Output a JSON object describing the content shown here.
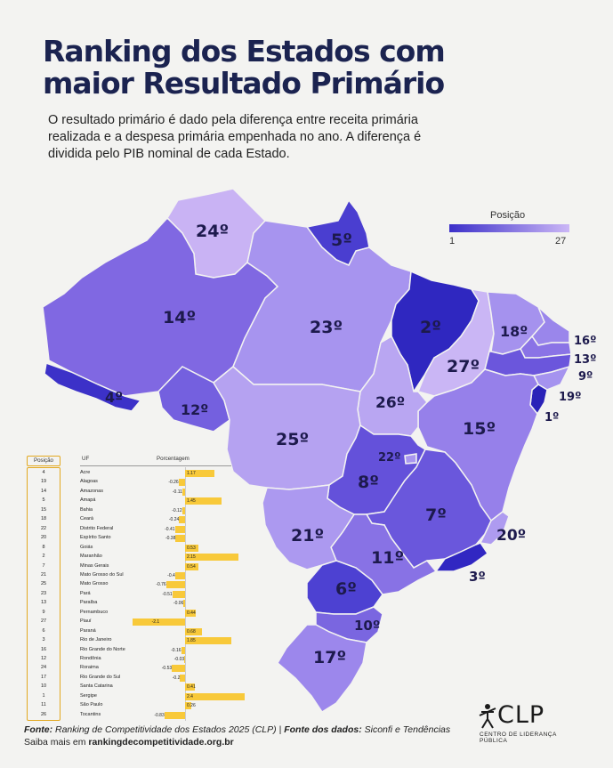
{
  "title": {
    "line1": "Ranking dos Estados com",
    "line2": "maior Resultado Primário"
  },
  "subtitle": "O resultado primário é dado pela diferença entre receita primária realizada e a despesa primária empenhada no ano. A diferença é dividida pelo PIB nominal de cada Estado.",
  "legend": {
    "title": "Posição",
    "min": "1",
    "max": "27",
    "color_min": "#3b2fc9",
    "color_max": "#cbb7f6"
  },
  "map_labels": [
    {
      "uf": "RR",
      "rank": "24º"
    },
    {
      "uf": "AP",
      "rank": "5º"
    },
    {
      "uf": "AM",
      "rank": "14º"
    },
    {
      "uf": "PA",
      "rank": "23º"
    },
    {
      "uf": "MA",
      "rank": "2º"
    },
    {
      "uf": "CE",
      "rank": "18º"
    },
    {
      "uf": "RN",
      "rank": "16º"
    },
    {
      "uf": "PB",
      "rank": "13º"
    },
    {
      "uf": "PE",
      "rank": "9º"
    },
    {
      "uf": "AL",
      "rank": "19º"
    },
    {
      "uf": "SE",
      "rank": "1º"
    },
    {
      "uf": "PI",
      "rank": "27º"
    },
    {
      "uf": "AC",
      "rank": "4º"
    },
    {
      "uf": "RO",
      "rank": "12º"
    },
    {
      "uf": "TO",
      "rank": "26º"
    },
    {
      "uf": "BA",
      "rank": "15º"
    },
    {
      "uf": "MT",
      "rank": "25º"
    },
    {
      "uf": "DF",
      "rank": "22º"
    },
    {
      "uf": "GO",
      "rank": "8º"
    },
    {
      "uf": "MG",
      "rank": "7º"
    },
    {
      "uf": "ES",
      "rank": "20º"
    },
    {
      "uf": "MS",
      "rank": "21º"
    },
    {
      "uf": "SP",
      "rank": "11º"
    },
    {
      "uf": "RJ",
      "rank": "3º"
    },
    {
      "uf": "PR",
      "rank": "6º"
    },
    {
      "uf": "SC",
      "rank": "10º"
    },
    {
      "uf": "RS",
      "rank": "17º"
    }
  ],
  "table": {
    "headers": {
      "pos": "Posição",
      "uf": "UF",
      "pct": "Porcentagem"
    },
    "rows": [
      {
        "pos": "4",
        "uf": "Acre",
        "value": 1.17,
        "label": "1.17"
      },
      {
        "pos": "19",
        "uf": "Alagoas",
        "value": -0.26,
        "label": "-0.26"
      },
      {
        "pos": "14",
        "uf": "Amazonas",
        "value": -0.11,
        "label": "-0.11"
      },
      {
        "pos": "5",
        "uf": "Amapá",
        "value": 1.45,
        "label": "1.45"
      },
      {
        "pos": "15",
        "uf": "Bahia",
        "value": -0.12,
        "label": "-0.12"
      },
      {
        "pos": "18",
        "uf": "Ceará",
        "value": -0.24,
        "label": "-0.24"
      },
      {
        "pos": "22",
        "uf": "Distrito Federal",
        "value": -0.41,
        "label": "-0.41"
      },
      {
        "pos": "20",
        "uf": "Espírito Santo",
        "value": -0.38,
        "label": "-0.38"
      },
      {
        "pos": "8",
        "uf": "Goiás",
        "value": 0.53,
        "label": "0.53"
      },
      {
        "pos": "2",
        "uf": "Maranhão",
        "value": 2.15,
        "label": "2.15"
      },
      {
        "pos": "7",
        "uf": "Minas Gerais",
        "value": 0.54,
        "label": "0.54"
      },
      {
        "pos": "21",
        "uf": "Mato Grosso do Sul",
        "value": -0.4,
        "label": "-0.4"
      },
      {
        "pos": "25",
        "uf": "Mato Grosso",
        "value": -0.76,
        "label": "-0.76"
      },
      {
        "pos": "23",
        "uf": "Pará",
        "value": -0.51,
        "label": "-0.51"
      },
      {
        "pos": "13",
        "uf": "Paraíba",
        "value": -0.06,
        "label": "-0.06"
      },
      {
        "pos": "9",
        "uf": "Pernambuco",
        "value": 0.44,
        "label": "0.44"
      },
      {
        "pos": "27",
        "uf": "Piauí",
        "value": -2.1,
        "label": "-2.1"
      },
      {
        "pos": "6",
        "uf": "Paraná",
        "value": 0.68,
        "label": "0.68"
      },
      {
        "pos": "3",
        "uf": "Rio de Janeiro",
        "value": 1.85,
        "label": "1.85"
      },
      {
        "pos": "16",
        "uf": "Rio Grande do Norte",
        "value": -0.16,
        "label": "-0.16"
      },
      {
        "pos": "12",
        "uf": "Rondônia",
        "value": -0.03,
        "label": "-0.03"
      },
      {
        "pos": "24",
        "uf": "Roraima",
        "value": -0.53,
        "label": "-0.53"
      },
      {
        "pos": "17",
        "uf": "Rio Grande do Sul",
        "value": -0.2,
        "label": "-0.2"
      },
      {
        "pos": "10",
        "uf": "Santa Catarina",
        "value": 0.41,
        "label": "0.41"
      },
      {
        "pos": "1",
        "uf": "Sergipe",
        "value": 2.4,
        "label": "2.4"
      },
      {
        "pos": "11",
        "uf": "São Paulo",
        "value": 0.26,
        "label": "0.26"
      },
      {
        "pos": "26",
        "uf": "Tocantins",
        "value": -0.83,
        "label": "-0.83"
      }
    ]
  },
  "footer": {
    "fonte_label": "Fonte:",
    "fonte_text": " Ranking de Competitividade dos Estados 2025 (CLP) | ",
    "dados_label": "Fonte dos dados:",
    "dados_text": " Siconfi e Tendências",
    "saiba_text": "Saiba mais em ",
    "saiba_link": "rankingdecompetitividade.org.br"
  },
  "logo": {
    "name": "CLP",
    "tagline": "CENTRO DE LIDERANÇA PÚBLICA"
  }
}
